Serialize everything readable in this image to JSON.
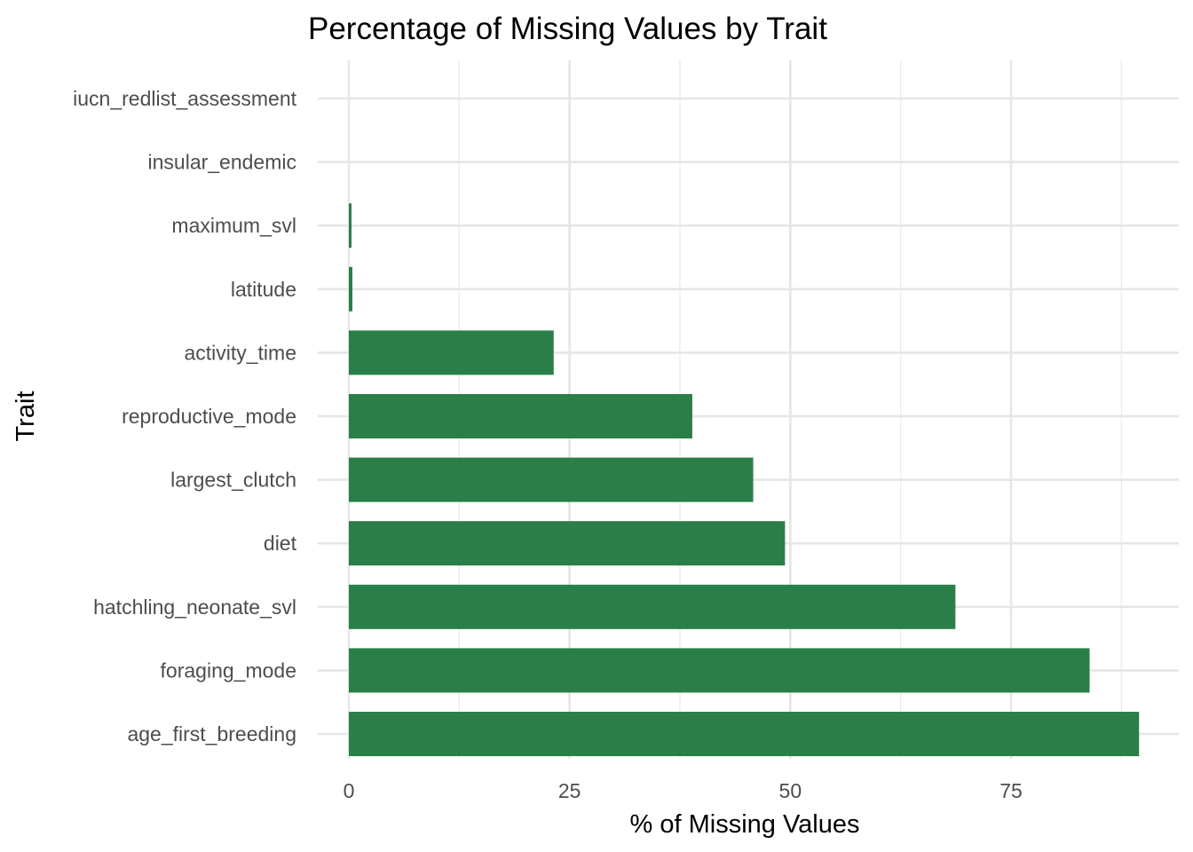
{
  "chart_data": {
    "type": "bar",
    "orientation": "horizontal",
    "title": "Percentage of Missing Values by Trait",
    "xlabel": "% of Missing Values",
    "ylabel": "Trait",
    "xlim": [
      0,
      91.5
    ],
    "xticks": [
      0,
      25,
      50,
      75
    ],
    "grid": true,
    "bar_color": "#2a7f48",
    "categories": [
      "iucn_redlist_assessment",
      "insular_endemic",
      "maximum_svl",
      "latitude",
      "activity_time",
      "reproductive_mode",
      "largest_clutch",
      "diet",
      "hatchling_neonate_svl",
      "foraging_mode",
      "age_first_breeding"
    ],
    "values": [
      0,
      0,
      0.3,
      0.4,
      23.2,
      38.9,
      45.8,
      49.4,
      68.7,
      83.9,
      89.5
    ]
  }
}
